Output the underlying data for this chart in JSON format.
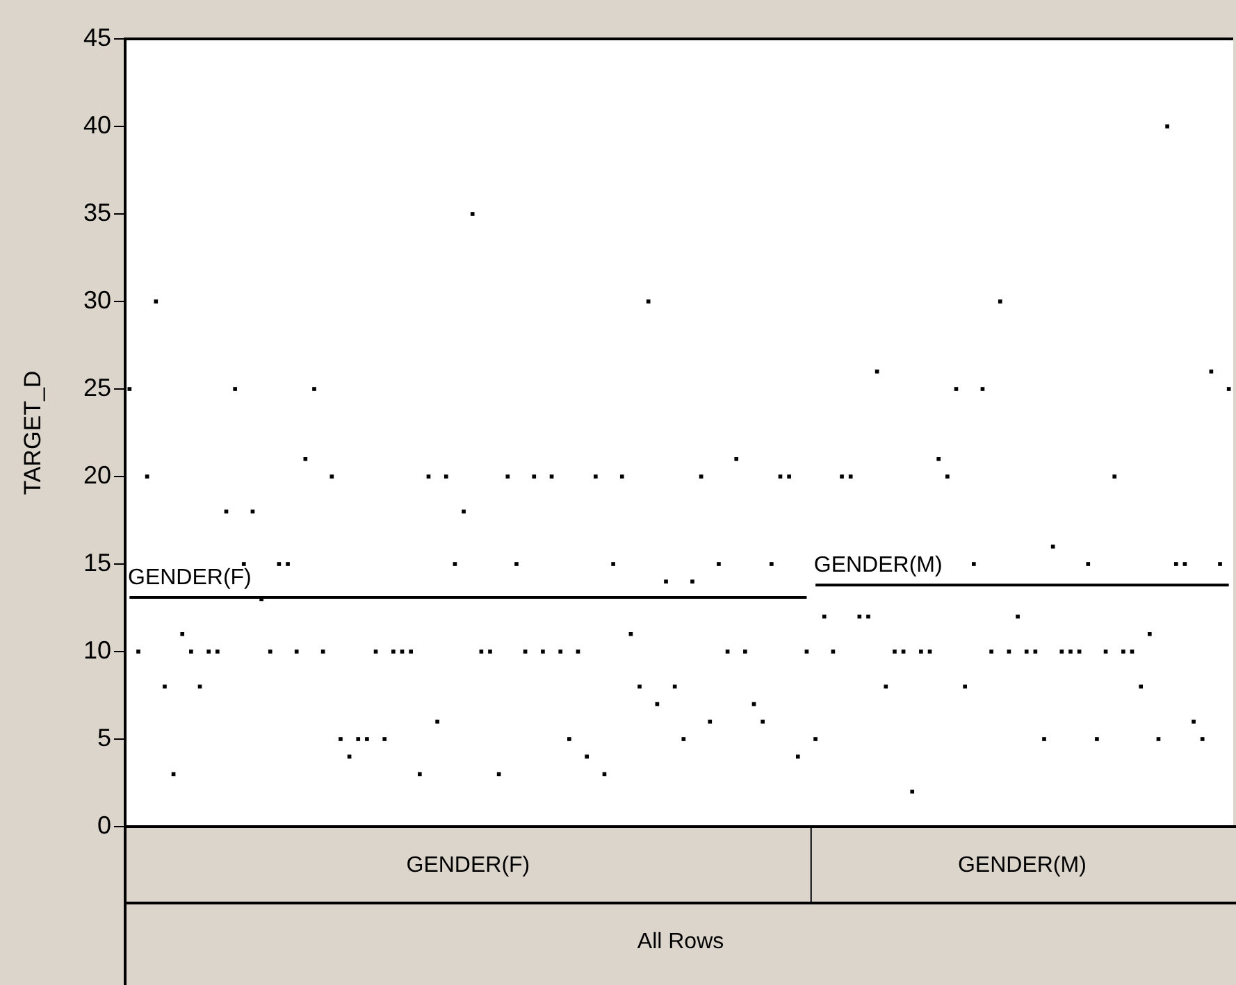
{
  "chart_data": {
    "type": "scatter",
    "ylabel": "TARGET_D",
    "ylim": [
      0,
      45
    ],
    "yticks": [
      0,
      5,
      10,
      15,
      20,
      25,
      30,
      35,
      40,
      45
    ],
    "tick_labels": "y",
    "grid": false,
    "marker": "square",
    "annotations": [
      "GENDER(F)",
      "GENDER(M)",
      "All Rows"
    ],
    "categories": [
      null,
      null,
      null,
      null,
      null,
      null,
      null,
      null,
      null,
      null,
      null,
      null,
      null,
      null,
      null,
      null,
      null,
      null,
      null,
      null,
      null,
      null,
      null,
      null,
      null,
      null,
      null,
      null,
      null,
      null,
      null,
      null,
      null,
      null,
      null,
      null,
      null,
      null,
      null,
      null,
      null,
      null,
      null,
      null,
      null,
      null,
      null,
      null,
      null,
      null,
      null,
      null,
      null,
      null,
      null,
      null,
      null,
      null,
      null,
      null,
      null,
      null,
      null,
      null,
      null,
      null,
      null,
      null,
      null,
      null,
      null,
      null,
      null,
      null,
      null,
      null,
      null,
      null,
      null,
      null,
      null,
      null,
      null,
      null,
      null,
      null,
      null,
      null,
      null,
      null,
      null,
      null,
      null,
      null,
      null,
      null,
      null,
      null,
      null,
      null,
      null,
      null,
      null,
      null,
      null,
      null,
      null,
      null,
      null,
      null,
      null,
      null,
      null,
      null,
      null,
      null,
      null,
      null,
      null,
      null,
      null,
      null,
      null,
      null,
      null,
      null
    ],
    "series": [
      {
        "color": "#000000",
        "values": [
          25,
          10,
          20,
          30,
          8,
          3,
          11,
          10,
          8,
          10,
          10,
          18,
          25,
          15,
          18,
          13,
          10,
          15,
          15,
          10,
          21,
          25,
          10,
          20,
          5,
          4,
          5,
          5,
          10,
          5,
          10,
          10,
          10,
          3,
          20,
          6,
          20,
          15,
          18,
          35,
          10,
          10,
          3,
          20,
          15,
          10,
          20,
          10,
          20,
          10,
          5,
          10,
          4,
          20,
          3,
          15,
          20,
          11,
          8,
          30,
          7,
          14,
          8,
          5,
          14,
          20,
          6,
          15,
          10,
          21,
          10,
          7,
          6,
          15,
          20,
          20,
          4,
          10,
          null,
          null,
          null,
          null,
          null,
          null,
          null,
          null,
          null,
          null,
          null,
          null,
          null,
          null,
          null,
          null,
          null,
          null,
          null,
          null,
          null,
          null,
          null,
          null,
          null,
          null,
          null,
          null,
          null,
          null,
          null,
          null,
          null,
          null,
          null,
          null,
          null,
          null,
          null,
          null,
          null,
          null,
          null,
          null,
          null,
          null,
          null,
          null
        ]
      },
      {
        "color": "#000000",
        "values": [
          null,
          null,
          null,
          null,
          null,
          null,
          null,
          null,
          null,
          null,
          null,
          null,
          null,
          null,
          null,
          null,
          null,
          null,
          null,
          null,
          null,
          null,
          null,
          null,
          null,
          null,
          null,
          null,
          null,
          null,
          null,
          null,
          null,
          null,
          null,
          null,
          null,
          null,
          null,
          null,
          null,
          null,
          null,
          null,
          null,
          null,
          null,
          null,
          null,
          null,
          null,
          null,
          null,
          null,
          null,
          null,
          null,
          null,
          null,
          null,
          null,
          null,
          null,
          null,
          null,
          null,
          null,
          null,
          null,
          null,
          null,
          null,
          null,
          null,
          null,
          null,
          null,
          null,
          5,
          12,
          10,
          20,
          20,
          12,
          12,
          26,
          8,
          10,
          10,
          2,
          10,
          10,
          21,
          20,
          25,
          8,
          15,
          25,
          10,
          30,
          10,
          12,
          10,
          10,
          5,
          16,
          10,
          10,
          10,
          15,
          5,
          10,
          20,
          10,
          10,
          8,
          11,
          5,
          40,
          15,
          15,
          6,
          5,
          26,
          15,
          25
        ]
      },
      {
        "type": "line",
        "name": "GENDER(F)",
        "color": "#000000",
        "marker": "none",
        "values": [
          13.1,
          13.1,
          13.1,
          13.1,
          13.1,
          13.1,
          13.1,
          13.1,
          13.1,
          13.1,
          13.1,
          13.1,
          13.1,
          13.1,
          13.1,
          13.1,
          13.1,
          13.1,
          13.1,
          13.1,
          13.1,
          13.1,
          13.1,
          13.1,
          13.1,
          13.1,
          13.1,
          13.1,
          13.1,
          13.1,
          13.1,
          13.1,
          13.1,
          13.1,
          13.1,
          13.1,
          13.1,
          13.1,
          13.1,
          13.1,
          13.1,
          13.1,
          13.1,
          13.1,
          13.1,
          13.1,
          13.1,
          13.1,
          13.1,
          13.1,
          13.1,
          13.1,
          13.1,
          13.1,
          13.1,
          13.1,
          13.1,
          13.1,
          13.1,
          13.1,
          13.1,
          13.1,
          13.1,
          13.1,
          13.1,
          13.1,
          13.1,
          13.1,
          13.1,
          13.1,
          13.1,
          13.1,
          13.1,
          13.1,
          13.1,
          13.1,
          13.1,
          13.1,
          null,
          null,
          null,
          null,
          null,
          null,
          null,
          null,
          null,
          null,
          null,
          null,
          null,
          null,
          null,
          null,
          null,
          null,
          null,
          null,
          null,
          null,
          null,
          null,
          null,
          null,
          null,
          null,
          null,
          null,
          null,
          null,
          null,
          null,
          null,
          null,
          null,
          null,
          null,
          null,
          null,
          null,
          null,
          null,
          null,
          null,
          null,
          null
        ]
      },
      {
        "type": "line",
        "name": "GENDER(M)",
        "color": "#000000",
        "marker": "none",
        "values": [
          null,
          null,
          null,
          null,
          null,
          null,
          null,
          null,
          null,
          null,
          null,
          null,
          null,
          null,
          null,
          null,
          null,
          null,
          null,
          null,
          null,
          null,
          null,
          null,
          null,
          null,
          null,
          null,
          null,
          null,
          null,
          null,
          null,
          null,
          null,
          null,
          null,
          null,
          null,
          null,
          null,
          null,
          null,
          null,
          null,
          null,
          null,
          null,
          null,
          null,
          null,
          null,
          null,
          null,
          null,
          null,
          null,
          null,
          null,
          null,
          null,
          null,
          null,
          null,
          null,
          null,
          null,
          null,
          null,
          null,
          null,
          null,
          null,
          null,
          null,
          null,
          null,
          null,
          13.8,
          13.8,
          13.8,
          13.8,
          13.8,
          13.8,
          13.8,
          13.8,
          13.8,
          13.8,
          13.8,
          13.8,
          13.8,
          13.8,
          13.8,
          13.8,
          13.8,
          13.8,
          13.8,
          13.8,
          13.8,
          13.8,
          13.8,
          13.8,
          13.8,
          13.8,
          13.8,
          13.8,
          13.8,
          13.8,
          13.8,
          13.8,
          13.8,
          13.8,
          13.8,
          13.8,
          13.8,
          13.8,
          13.8,
          13.8,
          13.8,
          13.8,
          13.8,
          13.8,
          13.8,
          13.8,
          13.8,
          13.8
        ]
      }
    ]
  }
}
